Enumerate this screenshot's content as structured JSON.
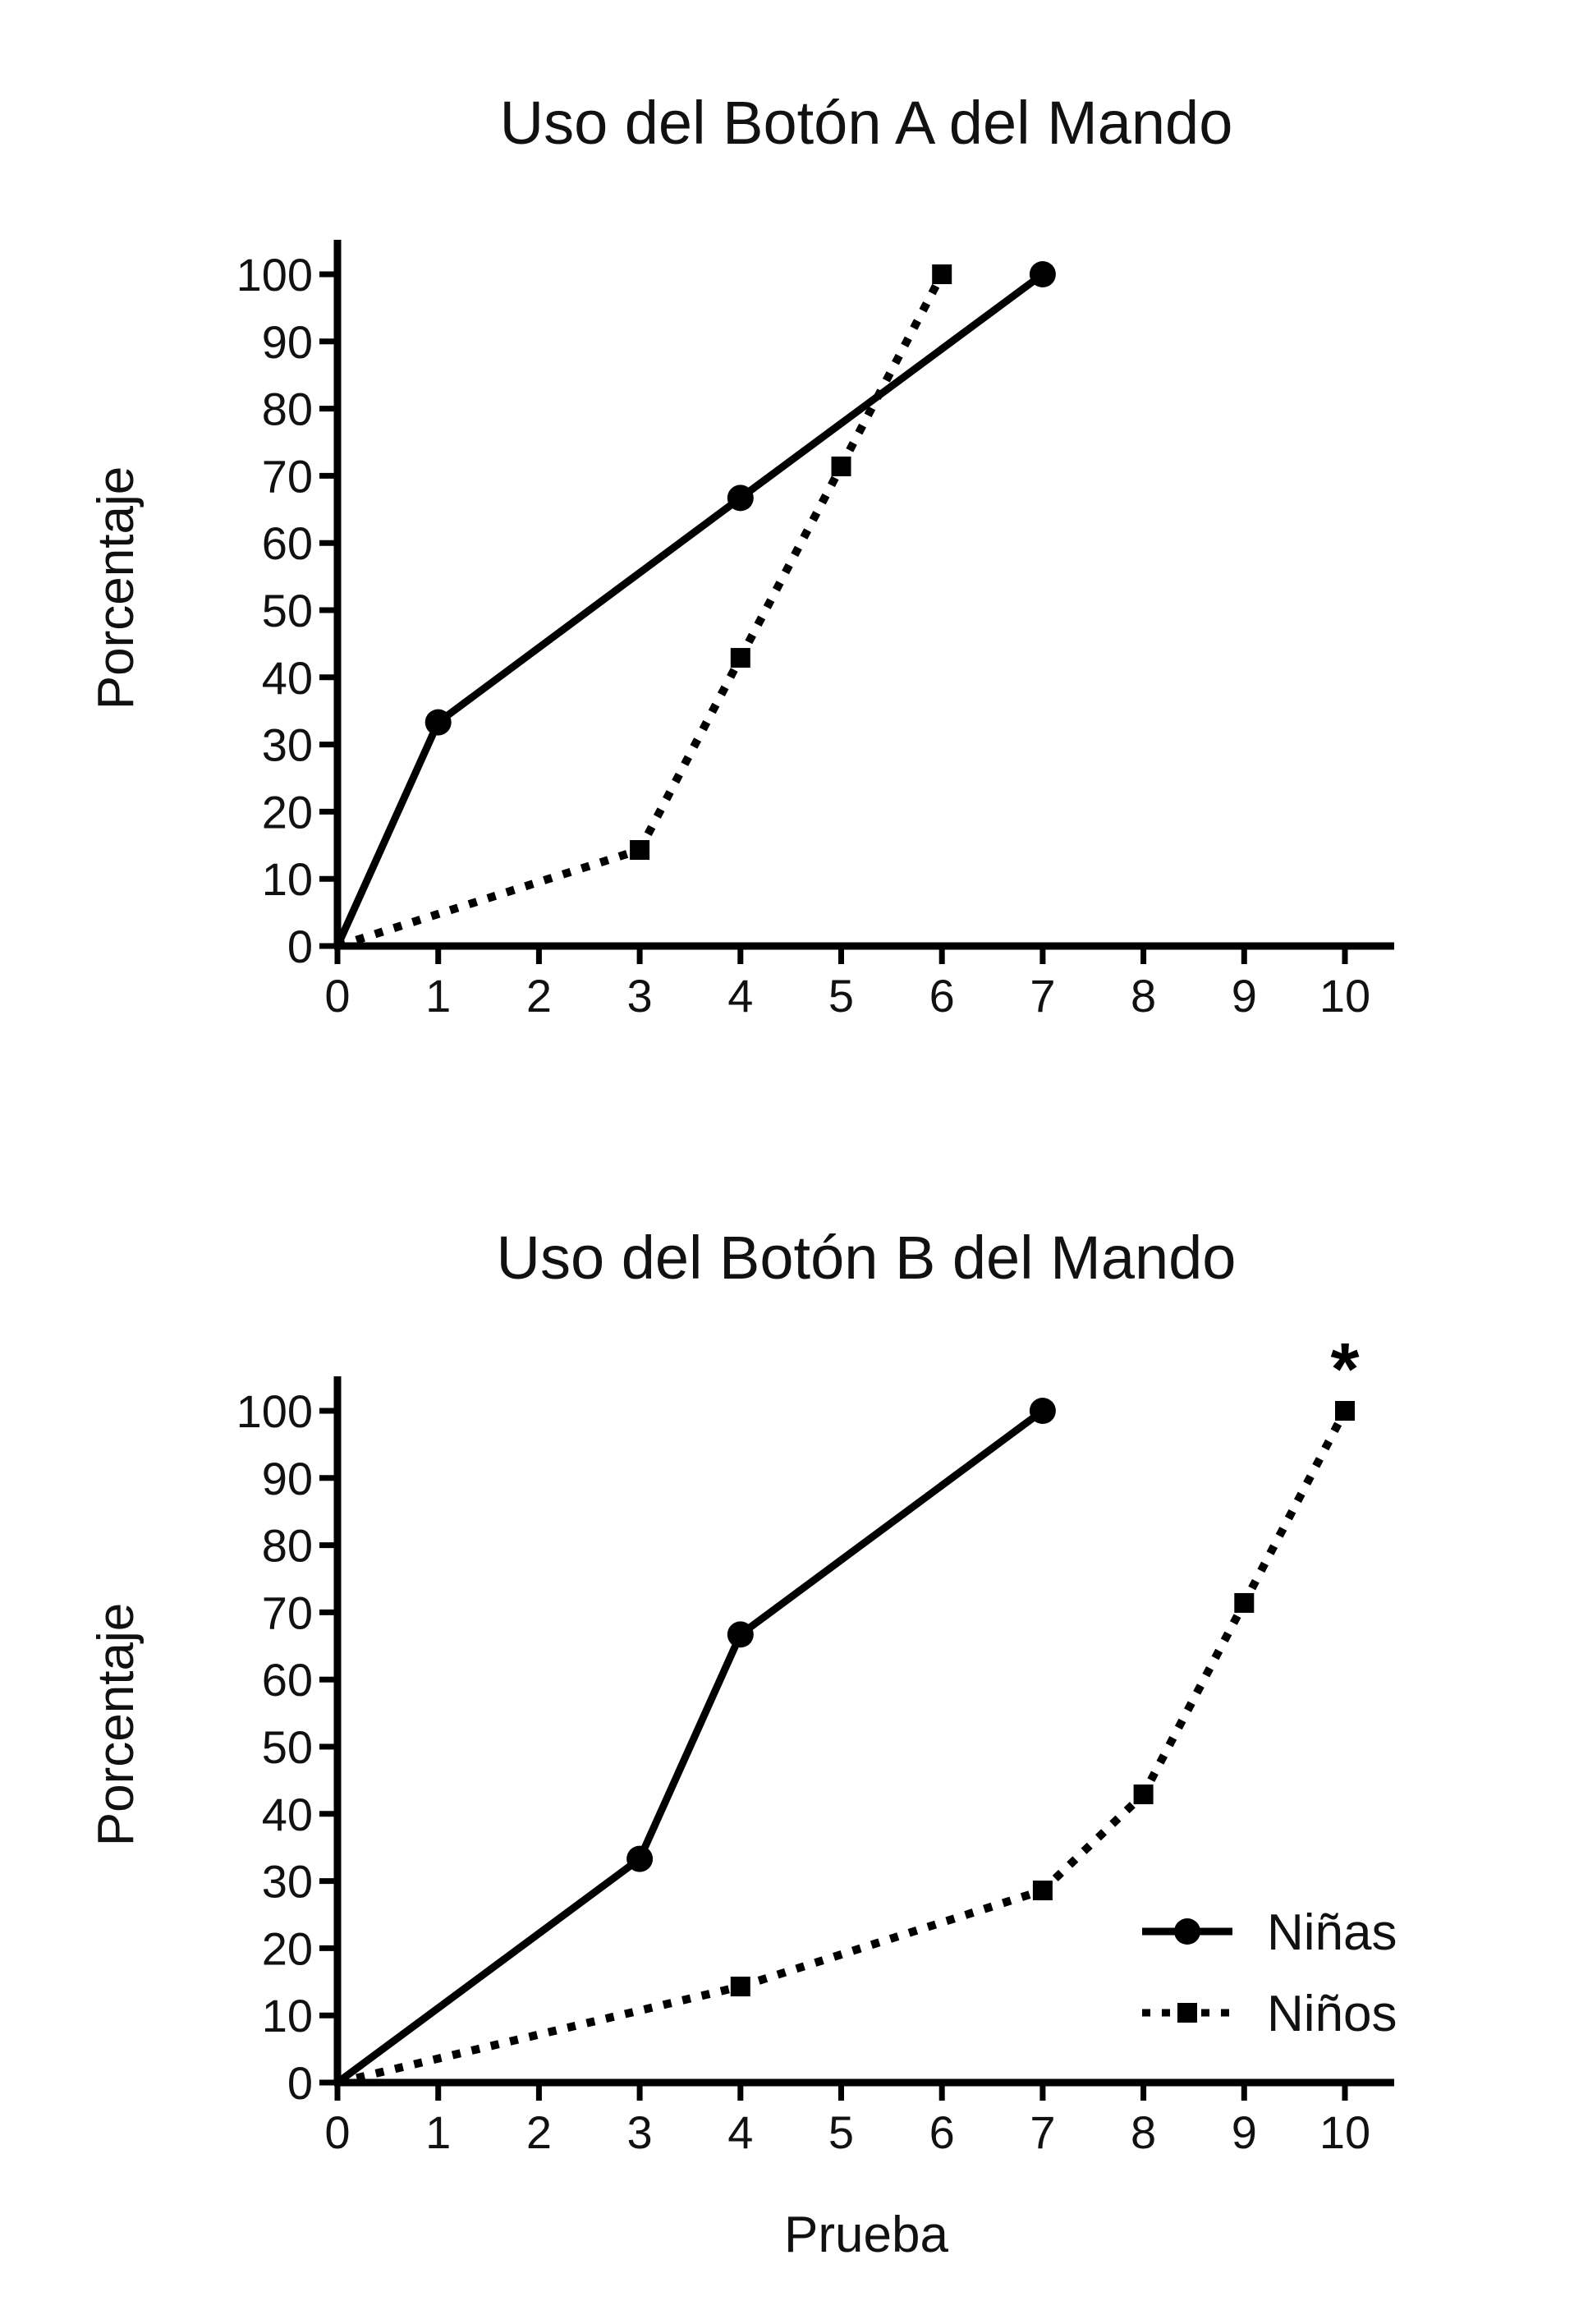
{
  "chart_data": [
    {
      "type": "line",
      "title": "Uso del Botón A del Mando",
      "xlabel": "",
      "ylabel": "Porcentaje",
      "xlim": [
        0,
        10
      ],
      "ylim": [
        0,
        100
      ],
      "xticks": [
        0,
        1,
        2,
        3,
        4,
        5,
        6,
        7,
        8,
        9,
        10
      ],
      "yticks": [
        0,
        10,
        20,
        30,
        40,
        50,
        60,
        70,
        80,
        90,
        100
      ],
      "grid": false,
      "series": [
        {
          "name": "Niñas",
          "style": "solid",
          "marker": "circle",
          "x": [
            0,
            1,
            4,
            7
          ],
          "y": [
            0,
            33.3,
            66.7,
            100
          ]
        },
        {
          "name": "Niños",
          "style": "dotted",
          "marker": "square",
          "x": [
            0,
            3,
            4,
            5,
            6
          ],
          "y": [
            0,
            14.3,
            42.9,
            71.4,
            100
          ]
        }
      ],
      "annotations": []
    },
    {
      "type": "line",
      "title": "Uso del Botón B del Mando",
      "xlabel": "Prueba",
      "ylabel": "Porcentaje",
      "xlim": [
        0,
        10
      ],
      "ylim": [
        0,
        100
      ],
      "xticks": [
        0,
        1,
        2,
        3,
        4,
        5,
        6,
        7,
        8,
        9,
        10
      ],
      "yticks": [
        0,
        10,
        20,
        30,
        40,
        50,
        60,
        70,
        80,
        90,
        100
      ],
      "grid": false,
      "legend": {
        "placement": "bottom-right",
        "entries": [
          "Niñas",
          "Niños"
        ]
      },
      "series": [
        {
          "name": "Niñas",
          "style": "solid",
          "marker": "circle",
          "x": [
            0,
            3,
            4,
            7
          ],
          "y": [
            0,
            33.3,
            66.7,
            100
          ]
        },
        {
          "name": "Niños",
          "style": "dotted",
          "marker": "square",
          "x": [
            0,
            4,
            7,
            8,
            9,
            10
          ],
          "y": [
            0,
            14.3,
            28.6,
            42.9,
            71.4,
            100
          ]
        }
      ],
      "annotations": [
        {
          "text": "*",
          "x": 10,
          "y": 100
        }
      ]
    }
  ]
}
